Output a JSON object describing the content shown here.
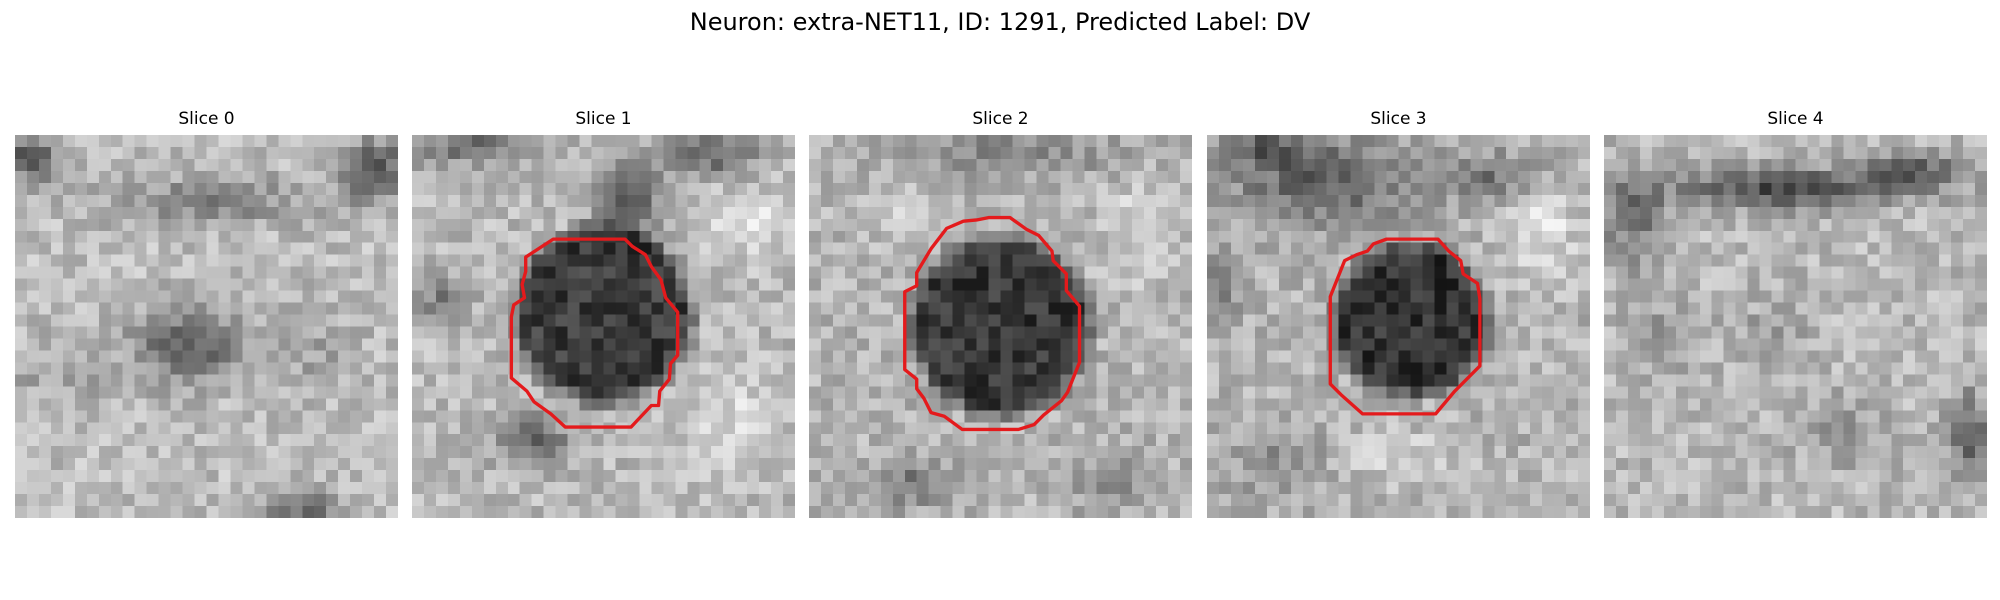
{
  "figure": {
    "title": "Neuron: extra-NET11, ID: 1291, Predicted Label: DV"
  },
  "panels": [
    {
      "title": "Slice 0",
      "has_contour": false
    },
    {
      "title": "Slice 1",
      "has_contour": true
    },
    {
      "title": "Slice 2",
      "has_contour": true
    },
    {
      "title": "Slice 3",
      "has_contour": true
    },
    {
      "title": "Slice 4",
      "has_contour": false
    }
  ],
  "colors": {
    "contour": "#e41a1c",
    "colormap": "grayscale"
  }
}
